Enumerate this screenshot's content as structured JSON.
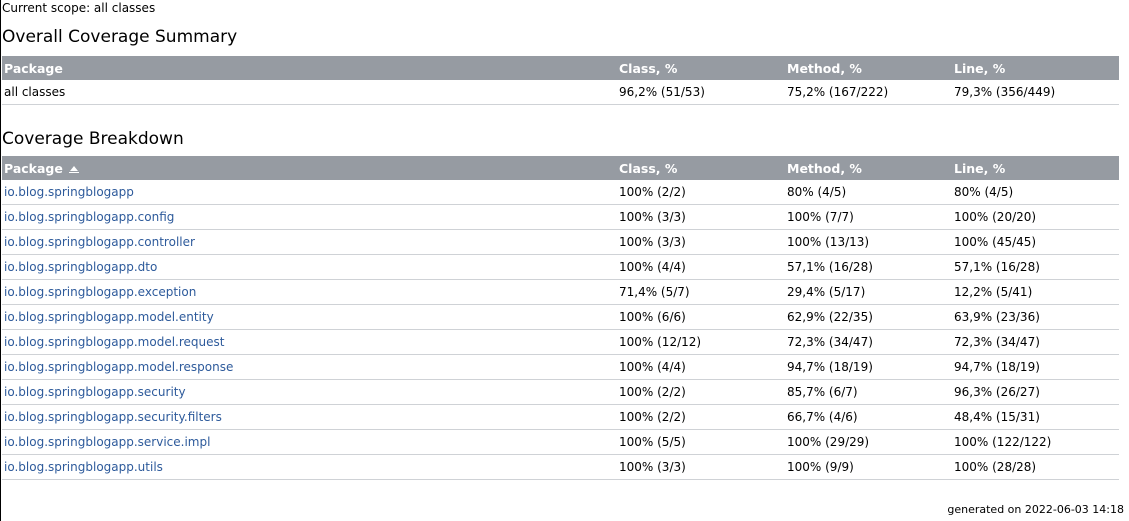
{
  "scope_text": "Current scope:  all classes",
  "summary": {
    "title": "Overall Coverage Summary",
    "headers": [
      "Package",
      "Class, %",
      "Method, %",
      "Line, %"
    ],
    "row": {
      "package": "all classes",
      "class": "96,2% (51/53)",
      "method": "75,2% (167/222)",
      "line": "79,3% (356/449)"
    }
  },
  "breakdown": {
    "title": "Coverage Breakdown",
    "headers": [
      "Package",
      "Class, %",
      "Method, %",
      "Line, %"
    ],
    "sort_icon": "sort-ascending-icon",
    "rows": [
      {
        "package": "io.blog.springblogapp",
        "class": "100% (2/2)",
        "method": "80% (4/5)",
        "line": "80% (4/5)"
      },
      {
        "package": "io.blog.springblogapp.config",
        "class": "100% (3/3)",
        "method": "100% (7/7)",
        "line": "100% (20/20)"
      },
      {
        "package": "io.blog.springblogapp.controller",
        "class": "100% (3/3)",
        "method": "100% (13/13)",
        "line": "100% (45/45)"
      },
      {
        "package": "io.blog.springblogapp.dto",
        "class": "100% (4/4)",
        "method": "57,1% (16/28)",
        "line": "57,1% (16/28)"
      },
      {
        "package": "io.blog.springblogapp.exception",
        "class": "71,4% (5/7)",
        "method": "29,4% (5/17)",
        "line": "12,2% (5/41)"
      },
      {
        "package": "io.blog.springblogapp.model.entity",
        "class": "100% (6/6)",
        "method": "62,9% (22/35)",
        "line": "63,9% (23/36)"
      },
      {
        "package": "io.blog.springblogapp.model.request",
        "class": "100% (12/12)",
        "method": "72,3% (34/47)",
        "line": "72,3% (34/47)"
      },
      {
        "package": "io.blog.springblogapp.model.response",
        "class": "100% (4/4)",
        "method": "94,7% (18/19)",
        "line": "94,7% (18/19)"
      },
      {
        "package": "io.blog.springblogapp.security",
        "class": "100% (2/2)",
        "method": "85,7% (6/7)",
        "line": "96,3% (26/27)"
      },
      {
        "package": "io.blog.springblogapp.security.filters",
        "class": "100% (2/2)",
        "method": "66,7% (4/6)",
        "line": "48,4% (15/31)"
      },
      {
        "package": "io.blog.springblogapp.service.impl",
        "class": "100% (5/5)",
        "method": "100% (29/29)",
        "line": "100% (122/122)"
      },
      {
        "package": "io.blog.springblogapp.utils",
        "class": "100% (3/3)",
        "method": "100% (9/9)",
        "line": "100% (28/28)"
      }
    ]
  },
  "footer_text": "generated on 2022-06-03 14:18",
  "colors": {
    "header_bg": "#969ba2",
    "link": "#2d5a9b",
    "row_border": "#cfd2d6"
  }
}
